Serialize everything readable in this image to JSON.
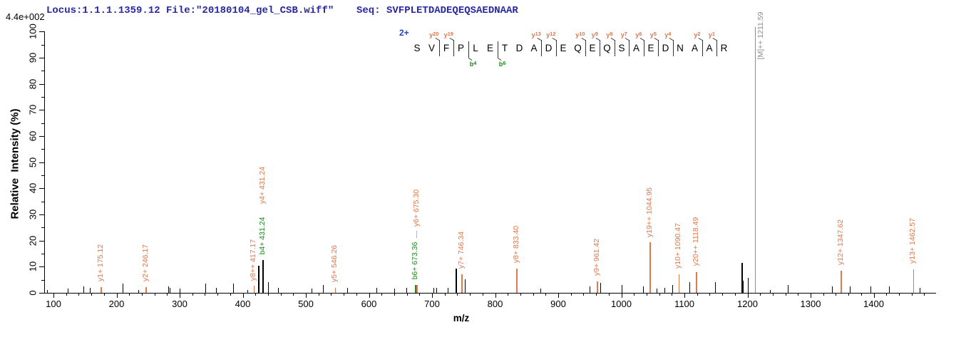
{
  "header": {
    "locus_file": "Locus:1.1.1.1359.12 File:\"20180104_gel_CSB.wiff\"",
    "seq": "Seq: SVFPLETDADEQEQSAEDNAAR",
    "max_intensity": "4.4e+002"
  },
  "sequence_panel": {
    "charge_label": "2+",
    "residues": [
      "S",
      "V",
      "F",
      "P",
      "L",
      "E",
      "T",
      "D",
      "A",
      "D",
      "E",
      "Q",
      "E",
      "Q",
      "S",
      "A",
      "E",
      "D",
      "N",
      "A",
      "A",
      "R"
    ],
    "y_marks": [
      {
        "label": "y20",
        "before_index": 2
      },
      {
        "label": "y19",
        "before_index": 3
      },
      {
        "label": "y13",
        "before_index": 9
      },
      {
        "label": "y12",
        "before_index": 10
      },
      {
        "label": "y10",
        "before_index": 12
      },
      {
        "label": "y9",
        "before_index": 13
      },
      {
        "label": "y8",
        "before_index": 14
      },
      {
        "label": "y7",
        "before_index": 15
      },
      {
        "label": "y6",
        "before_index": 16
      },
      {
        "label": "y5",
        "before_index": 17
      },
      {
        "label": "y4",
        "before_index": 18
      },
      {
        "label": "y2",
        "before_index": 20
      },
      {
        "label": "y1",
        "before_index": 21
      }
    ],
    "b_marks": [
      {
        "label": "b4",
        "before_index": 4
      },
      {
        "label": "b6",
        "before_index": 6
      }
    ]
  },
  "chart_data": {
    "type": "bar",
    "subtype": "ms2-fragment-ion-spectrum",
    "xlabel": "m/z",
    "ylabel": "Relative  Intensity (%)",
    "xlim": [
      85,
      1500
    ],
    "ylim": [
      0,
      100
    ],
    "grid": false,
    "x_major_ticks": [
      100,
      200,
      300,
      400,
      500,
      600,
      700,
      800,
      900,
      1000,
      1100,
      1200,
      1300,
      1400
    ],
    "x_minor_step": 20,
    "y_major_step": 10,
    "y_minor_step": 5,
    "labeled_peaks": [
      {
        "label": "y1+ 175.12",
        "mz": 175.12,
        "intensity_pct": 2.2,
        "type": "y"
      },
      {
        "label": "y2+ 246.17",
        "mz": 246.17,
        "intensity_pct": 2.2,
        "type": "y"
      },
      {
        "label": "y8++ 417.17",
        "mz": 417.17,
        "intensity_pct": 2.6,
        "type": "y"
      },
      {
        "label": "b4+ 431.24",
        "mz": 431.24,
        "intensity_pct": 12.6,
        "type": "b",
        "peak_color": "black"
      },
      {
        "label": "y4+ 431.24",
        "mz": 431.24,
        "intensity_pct": 12.6,
        "type": "y",
        "stack_above": "b4+ 431.24"
      },
      {
        "label": "y5+ 546.26",
        "mz": 546.26,
        "intensity_pct": 1.8,
        "type": "y"
      },
      {
        "label": "b6+ 673.36",
        "mz": 673.36,
        "intensity_pct": 3.0,
        "type": "b"
      },
      {
        "label": "y6+ 675.30",
        "mz": 675.3,
        "intensity_pct": 3.0,
        "type": "y",
        "stack_above": "b6+ 673.36",
        "dashed_connector": true
      },
      {
        "label": "y7+ 746.34",
        "mz": 746.34,
        "intensity_pct": 7.1,
        "type": "y"
      },
      {
        "label": "y8+ 833.40",
        "mz": 833.4,
        "intensity_pct": 9.3,
        "type": "y"
      },
      {
        "label": "y9+ 961.42",
        "mz": 961.42,
        "intensity_pct": 4.4,
        "type": "y"
      },
      {
        "label": "y19++ 1044.95",
        "mz": 1044.95,
        "intensity_pct": 19.3,
        "type": "y"
      },
      {
        "label": "y10+ 1090.47",
        "mz": 1090.47,
        "intensity_pct": 7.1,
        "type": "y"
      },
      {
        "label": "y20++ 1118.49",
        "mz": 1118.49,
        "intensity_pct": 7.9,
        "type": "y"
      },
      {
        "label": "y12+ 1347.62",
        "mz": 1347.62,
        "intensity_pct": 8.4,
        "type": "y"
      },
      {
        "label": "y13+ 1462.57",
        "mz": 1462.57,
        "intensity_pct": 9.0,
        "type": "y"
      }
    ],
    "precursor": {
      "label": "[M]++ 1211.59",
      "mz": 1211.59,
      "full_height": true
    },
    "unlabeled_peaks": [
      [
        90,
        1.2
      ],
      [
        123,
        1.5
      ],
      [
        148,
        2.5
      ],
      [
        158,
        2
      ],
      [
        210,
        3.5
      ],
      [
        234,
        1.2
      ],
      [
        282,
        2.5
      ],
      [
        284,
        2
      ],
      [
        300,
        1.6
      ],
      [
        341,
        3.5
      ],
      [
        358,
        2
      ],
      [
        385,
        3.5
      ],
      [
        407,
        1
      ],
      [
        424,
        10.4
      ],
      [
        440,
        4
      ],
      [
        456,
        2
      ],
      [
        509,
        1.5
      ],
      [
        527,
        3
      ],
      [
        566,
        2
      ],
      [
        612,
        2
      ],
      [
        640,
        1.5
      ],
      [
        659,
        2
      ],
      [
        702,
        2
      ],
      [
        707,
        2
      ],
      [
        725,
        1.8
      ],
      [
        737,
        9.3
      ],
      [
        752,
        5.2
      ],
      [
        872,
        1.6
      ],
      [
        950,
        2.5
      ],
      [
        967,
        3.8
      ],
      [
        1001,
        3
      ],
      [
        1034,
        2.5
      ],
      [
        1056,
        1.5
      ],
      [
        1068,
        2
      ],
      [
        1081,
        3
      ],
      [
        1108,
        4
      ],
      [
        1149,
        4
      ],
      [
        1190,
        11.4
      ],
      [
        1193,
        4.5
      ],
      [
        1200,
        5.7
      ],
      [
        1236,
        1.2
      ],
      [
        1264,
        3
      ],
      [
        1334,
        2.5
      ],
      [
        1362,
        2.5
      ],
      [
        1395,
        2.5
      ],
      [
        1424,
        2.5
      ],
      [
        1473,
        2
      ]
    ]
  },
  "colors": {
    "y_ion": "#e0784a",
    "b_ion": "#1e8c1e",
    "precursor": "#8c8c8c",
    "peak": "#000000",
    "header_text": "#2828a0",
    "charge_label": "#2240c8",
    "background": "#ffffff",
    "axis": "#000000"
  }
}
